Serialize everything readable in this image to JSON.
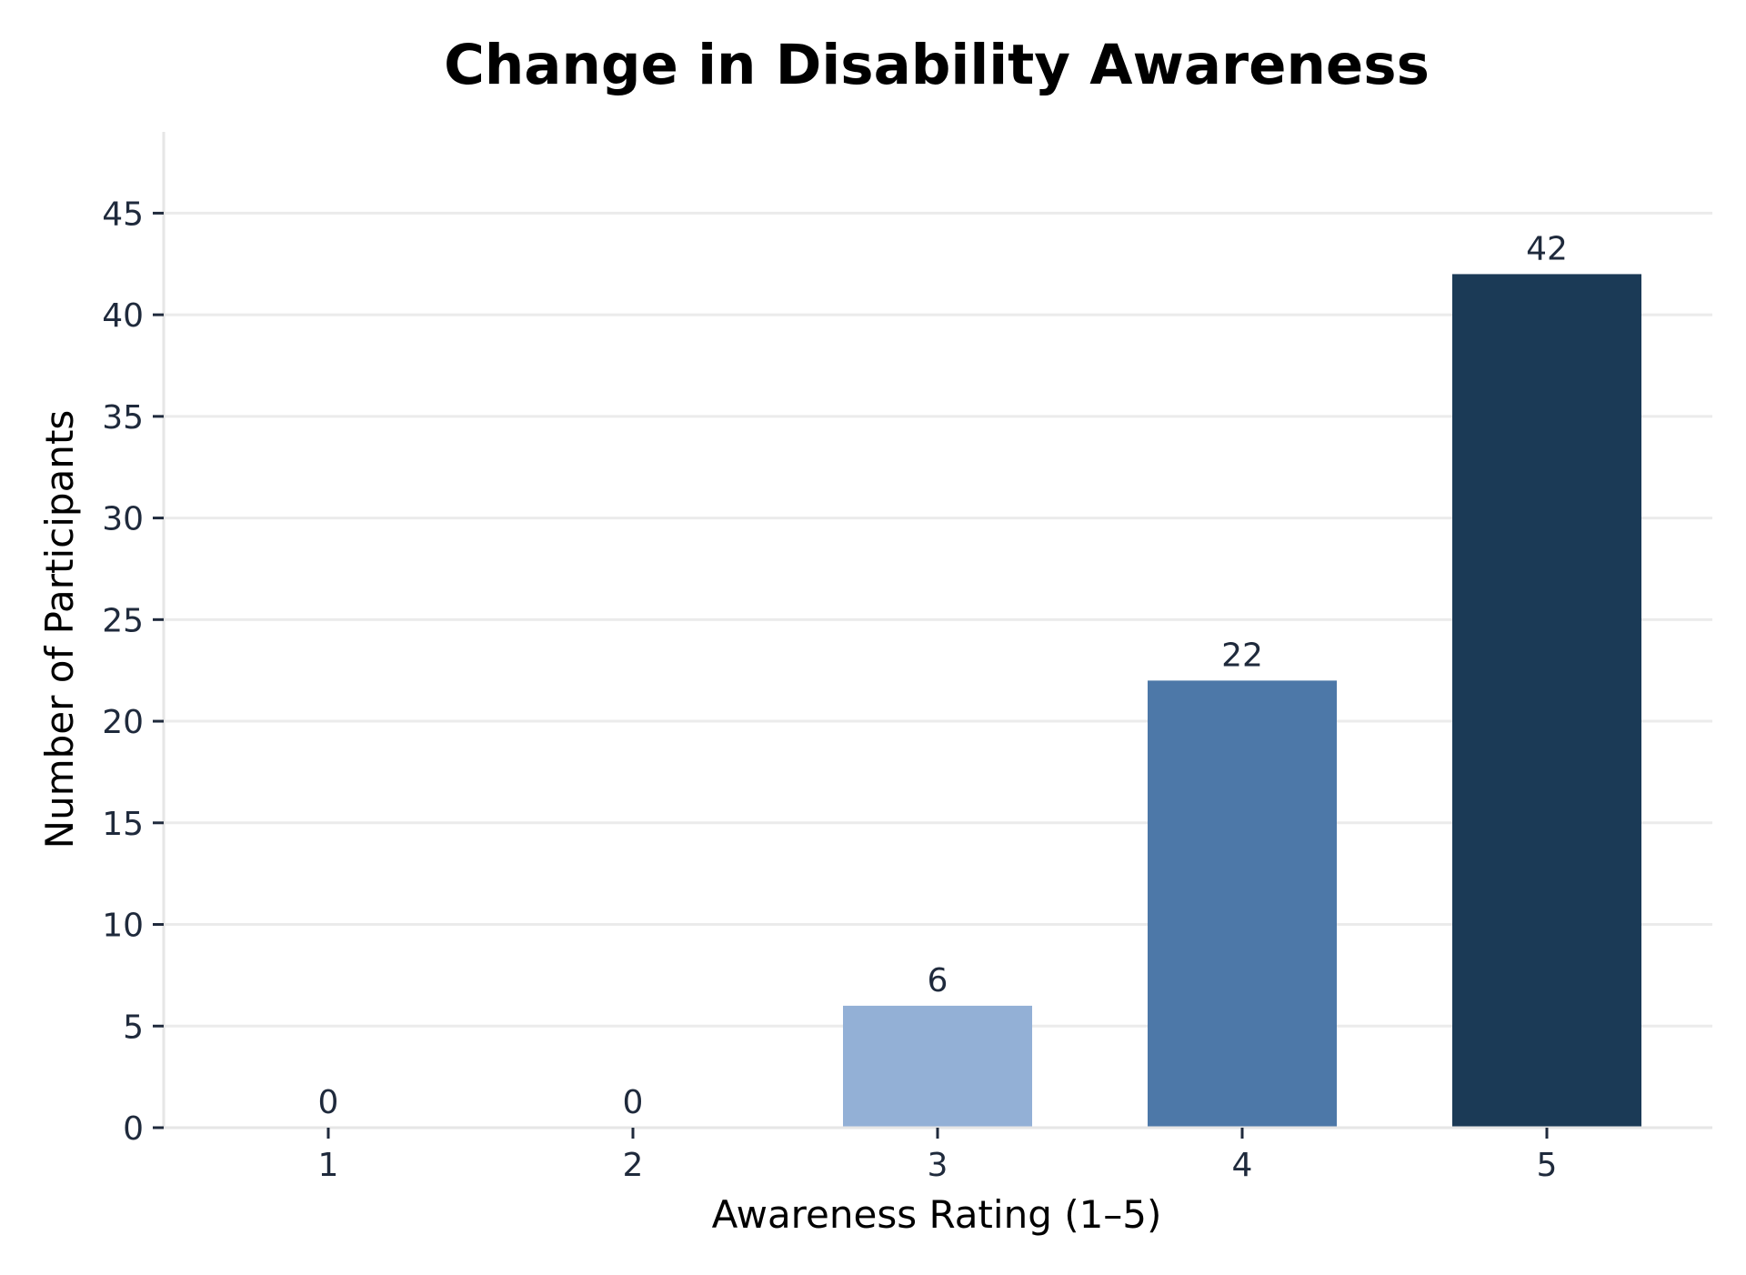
{
  "chart_data": {
    "type": "bar",
    "title": "Change in Disability Awareness",
    "xlabel": "Awareness Rating (1–5)",
    "ylabel": "Number of Participants",
    "categories": [
      "1",
      "2",
      "3",
      "4",
      "5"
    ],
    "values": [
      0,
      0,
      6,
      22,
      42
    ],
    "data_labels": [
      "0",
      "0",
      "6",
      "22",
      "42"
    ],
    "bar_colors": [
      "#cfdcec",
      "#b3c8e2",
      "#93b0d6",
      "#4d78a8",
      "#1b3a56"
    ],
    "ylim": [
      0,
      49
    ],
    "yticks": [
      0,
      5,
      10,
      15,
      20,
      25,
      30,
      35,
      40,
      45
    ],
    "grid": true,
    "legend": "none"
  }
}
